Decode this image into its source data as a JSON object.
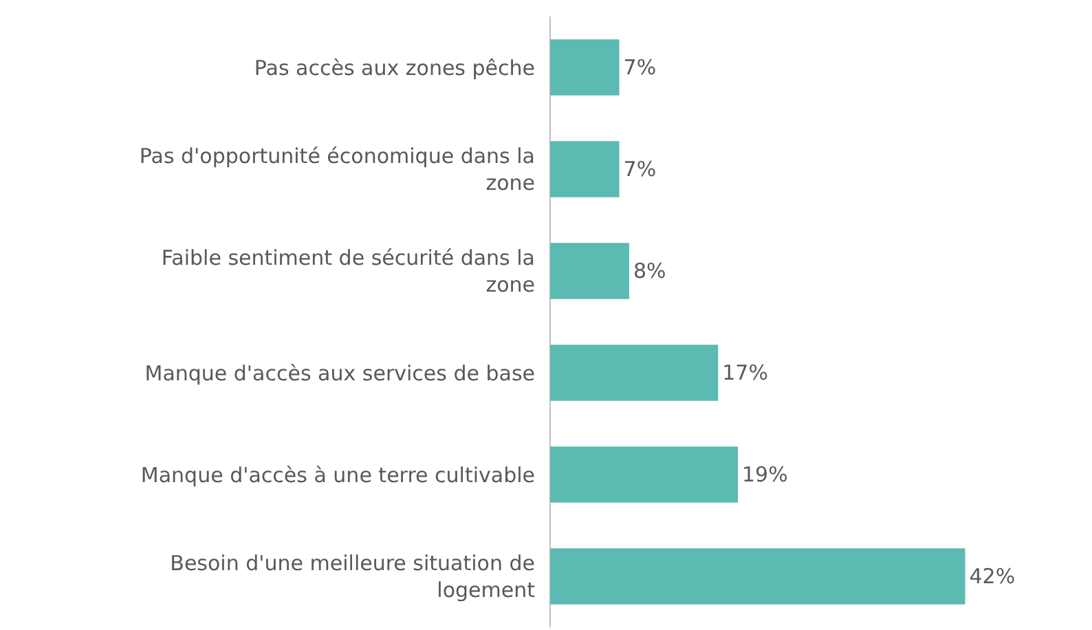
{
  "chart_data": {
    "type": "bar",
    "orientation": "horizontal",
    "categories": [
      "Pas accès aux zones pêche",
      "Pas d'opportunité économique dans la zone",
      "Faible sentiment de sécurité dans la zone",
      "Manque d'accès aux services de base",
      "Manque d'accès à une terre cultivable",
      "Besoin d'une meilleure situation de logement"
    ],
    "values": [
      7,
      7,
      8,
      17,
      19,
      42
    ],
    "value_labels": [
      "7%",
      "7%",
      "8%",
      "17%",
      "19%",
      "42%"
    ],
    "color": "#5bbab1"
  }
}
